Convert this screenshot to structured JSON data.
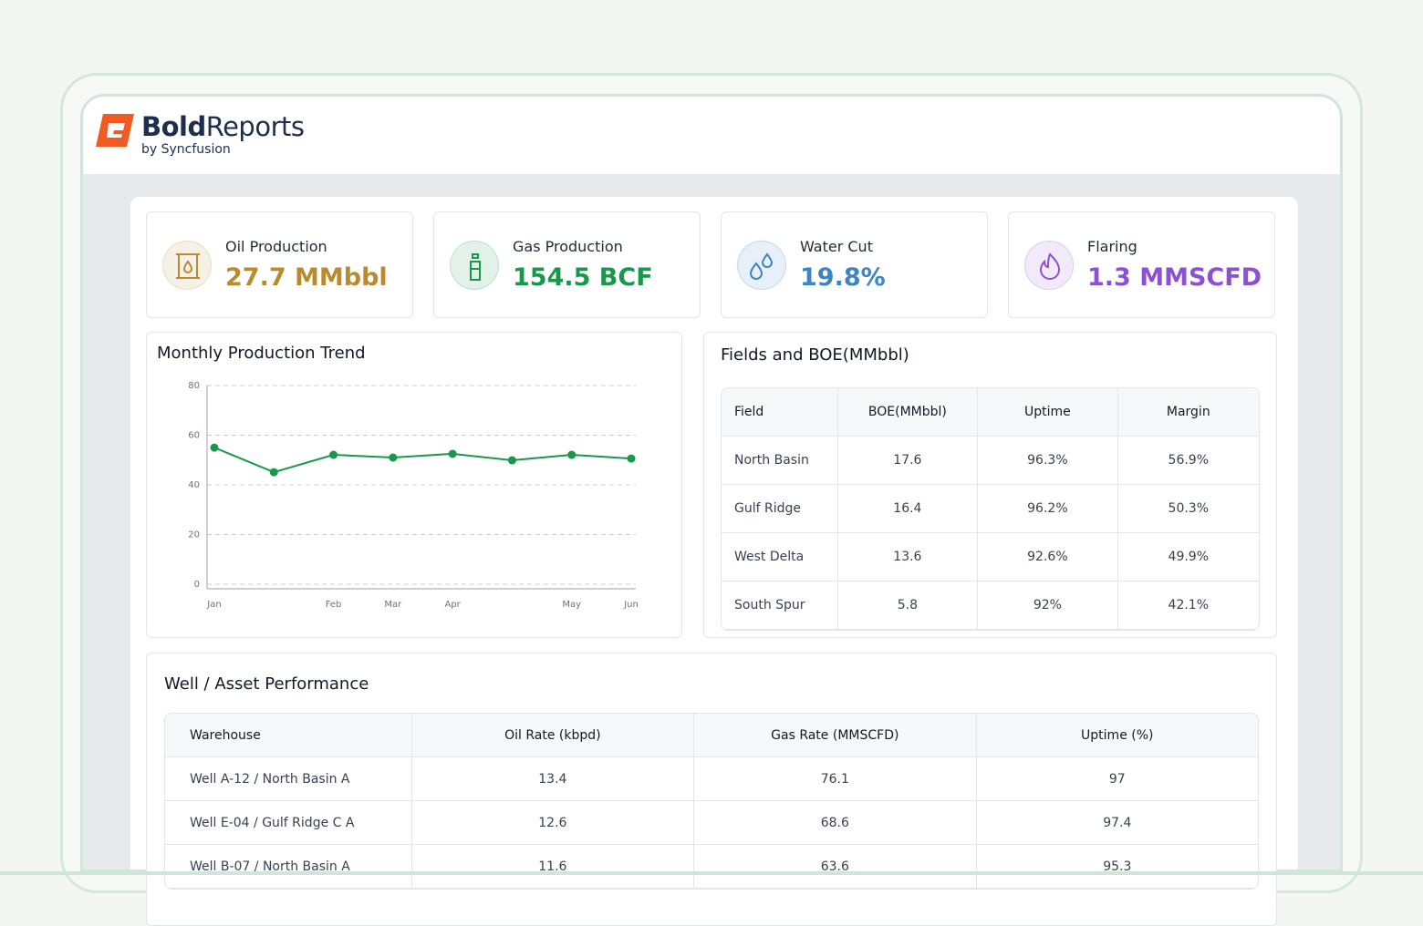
{
  "brand": {
    "bold": "Bold",
    "rest": "Reports",
    "by": "by Syncfusion"
  },
  "kpis": [
    {
      "label": "Oil Production",
      "value": "27.7 MMbbl",
      "color": "#b98a2e"
    },
    {
      "label": "Gas Production",
      "value": "154.5 BCF",
      "color": "#17984a"
    },
    {
      "label": "Water Cut",
      "value": "19.8%",
      "color": "#3b84c6"
    },
    {
      "label": "Flaring",
      "value": "1.3 MMSCFD",
      "color": "#8d4fd3"
    }
  ],
  "chart_data": {
    "type": "line",
    "title": "Monthly Production Trend",
    "categories": [
      "Jan",
      null,
      "Feb",
      "Mar",
      "Apr",
      null,
      "May",
      "Jun"
    ],
    "series": [
      {
        "color": "#17984a",
        "values": [
          55,
          45.1,
          52.1,
          51,
          52.5,
          49.9,
          52.1,
          50.6
        ]
      }
    ],
    "ylim": [
      0,
      80
    ],
    "yticks": [
      0,
      20,
      40,
      60,
      80
    ],
    "grid": true
  },
  "fields_table": {
    "title": "Fields and BOE(MMbbl)",
    "columns": [
      "Field",
      "BOE(MMbbl)",
      "Uptime",
      "Margin"
    ],
    "rows": [
      [
        "North Basin",
        17.6,
        "96.3%",
        "56.9%"
      ],
      [
        "Gulf Ridge",
        16.4,
        "96.2%",
        "50.3%"
      ],
      [
        "West Delta",
        13.6,
        "92.6%",
        "49.9%"
      ],
      [
        "South Spur",
        5.8,
        "92%",
        "42.1%"
      ]
    ]
  },
  "well_table": {
    "title": "Well / Asset Performance",
    "columns": [
      "Warehouse",
      "Oil Rate (kbpd)",
      "Gas Rate (MMSCFD)",
      "Uptime (%)"
    ],
    "rows": [
      [
        "Well A-12 / North Basin A",
        13.4,
        76.1,
        97
      ],
      [
        "Well E-04 / Gulf Ridge C A",
        12.6,
        68.6,
        97.4
      ],
      [
        "Well B-07 / North Basin A",
        11.6,
        63.6,
        95.3
      ]
    ]
  }
}
